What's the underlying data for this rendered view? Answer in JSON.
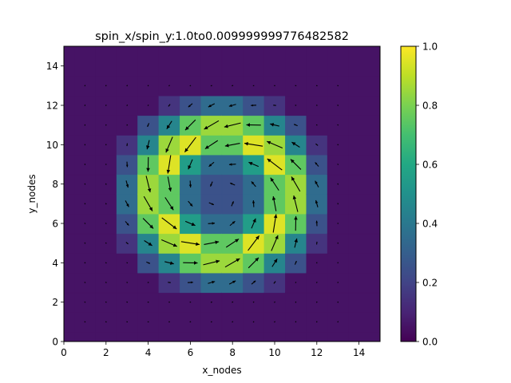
{
  "chart_data": {
    "type": "heatmap",
    "title": "spin_x/spin_y:1.0to0.009999999776482582",
    "xlabel": "x_nodes",
    "ylabel": "y_nodes",
    "xlim": [
      0,
      15
    ],
    "ylim": [
      0,
      15
    ],
    "x_ticks": [
      0,
      2,
      4,
      6,
      8,
      10,
      12,
      14
    ],
    "y_ticks": [
      0,
      2,
      4,
      6,
      8,
      10,
      12,
      14
    ],
    "grid": false,
    "grid_nodes": {
      "x_start": 0,
      "x_end": 14,
      "y_start": 0,
      "y_end": 14,
      "step": 1
    },
    "field": {
      "description": "skyrmion-like vortex: in-plane spin magnitude peaks on a ring around the centre",
      "center": [
        7.5,
        7.5
      ],
      "peak_radius": 3.0,
      "ring_width": 1.55,
      "peak_value": 1.0,
      "center_value": 0.3,
      "rotation": "counter-clockwise",
      "spiral_angle_deg": 22
    },
    "contour_levels": [
      0.0,
      0.1,
      0.2,
      0.3,
      0.4,
      0.5,
      0.6,
      0.7,
      0.8,
      0.9,
      1.0
    ],
    "colorbar": {
      "colormap": "viridis",
      "range": [
        0.0,
        1.0
      ],
      "ticks": [
        0.0,
        0.2,
        0.4,
        0.6,
        0.8,
        1.0
      ],
      "tick_labels": [
        "0.0",
        "0.2",
        "0.4",
        "0.6",
        "0.8",
        "1.0"
      ]
    },
    "quiver": {
      "color": "#000000",
      "present": true
    }
  }
}
